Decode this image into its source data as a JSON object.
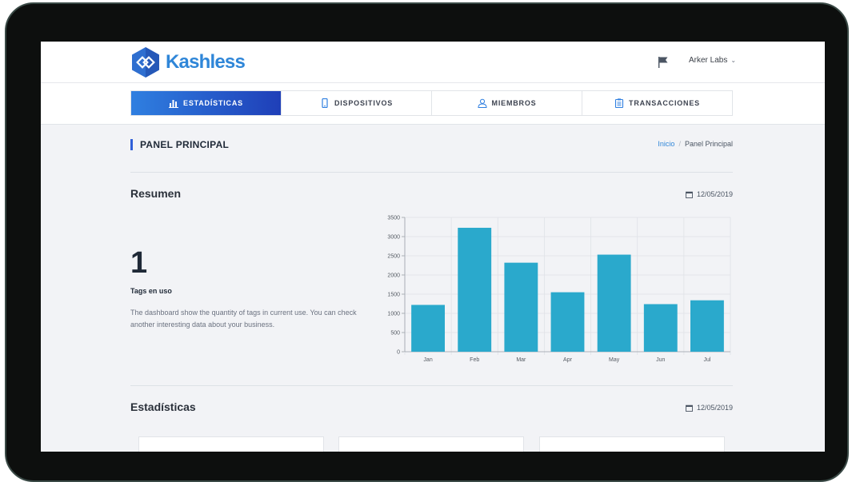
{
  "brand": {
    "name": "Kashless",
    "color": "#2f86d8"
  },
  "header": {
    "account_label": "Arker Labs",
    "flag_icon": "flag-icon"
  },
  "nav": {
    "tabs": [
      {
        "label": "ESTADÍSTICAS",
        "icon": "bar-chart-icon",
        "active": true
      },
      {
        "label": "DISPOSITIVOS",
        "icon": "phone-icon",
        "active": false
      },
      {
        "label": "MIEMBROS",
        "icon": "user-icon",
        "active": false
      },
      {
        "label": "TRANSACCIONES",
        "icon": "clipboard-icon",
        "active": false
      }
    ]
  },
  "page": {
    "title": "PANEL PRINCIPAL",
    "breadcrumb": {
      "home": "Inicio",
      "separator": "/",
      "current": "Panel Principal"
    }
  },
  "resumen": {
    "title": "Resumen",
    "date": "12/05/2019",
    "tags_count": "1",
    "tags_label": "Tags en uso",
    "description": "The dashboard show the quantity of tags in current use. You can check another interesting data about your business."
  },
  "estadisticas": {
    "title": "Estadísticas",
    "date": "12/05/2019"
  },
  "chart_data": {
    "type": "bar",
    "categories": [
      "Jan",
      "Feb",
      "Mar",
      "Apr",
      "May",
      "Jun",
      "Jul"
    ],
    "values": [
      1220,
      3230,
      2320,
      1550,
      2530,
      1240,
      1340
    ],
    "ylim": [
      0,
      3500
    ],
    "yticks": [
      0,
      500,
      1000,
      1500,
      2000,
      2500,
      3000,
      3500
    ],
    "grid": true,
    "bar_color": "#2aa9cc"
  }
}
